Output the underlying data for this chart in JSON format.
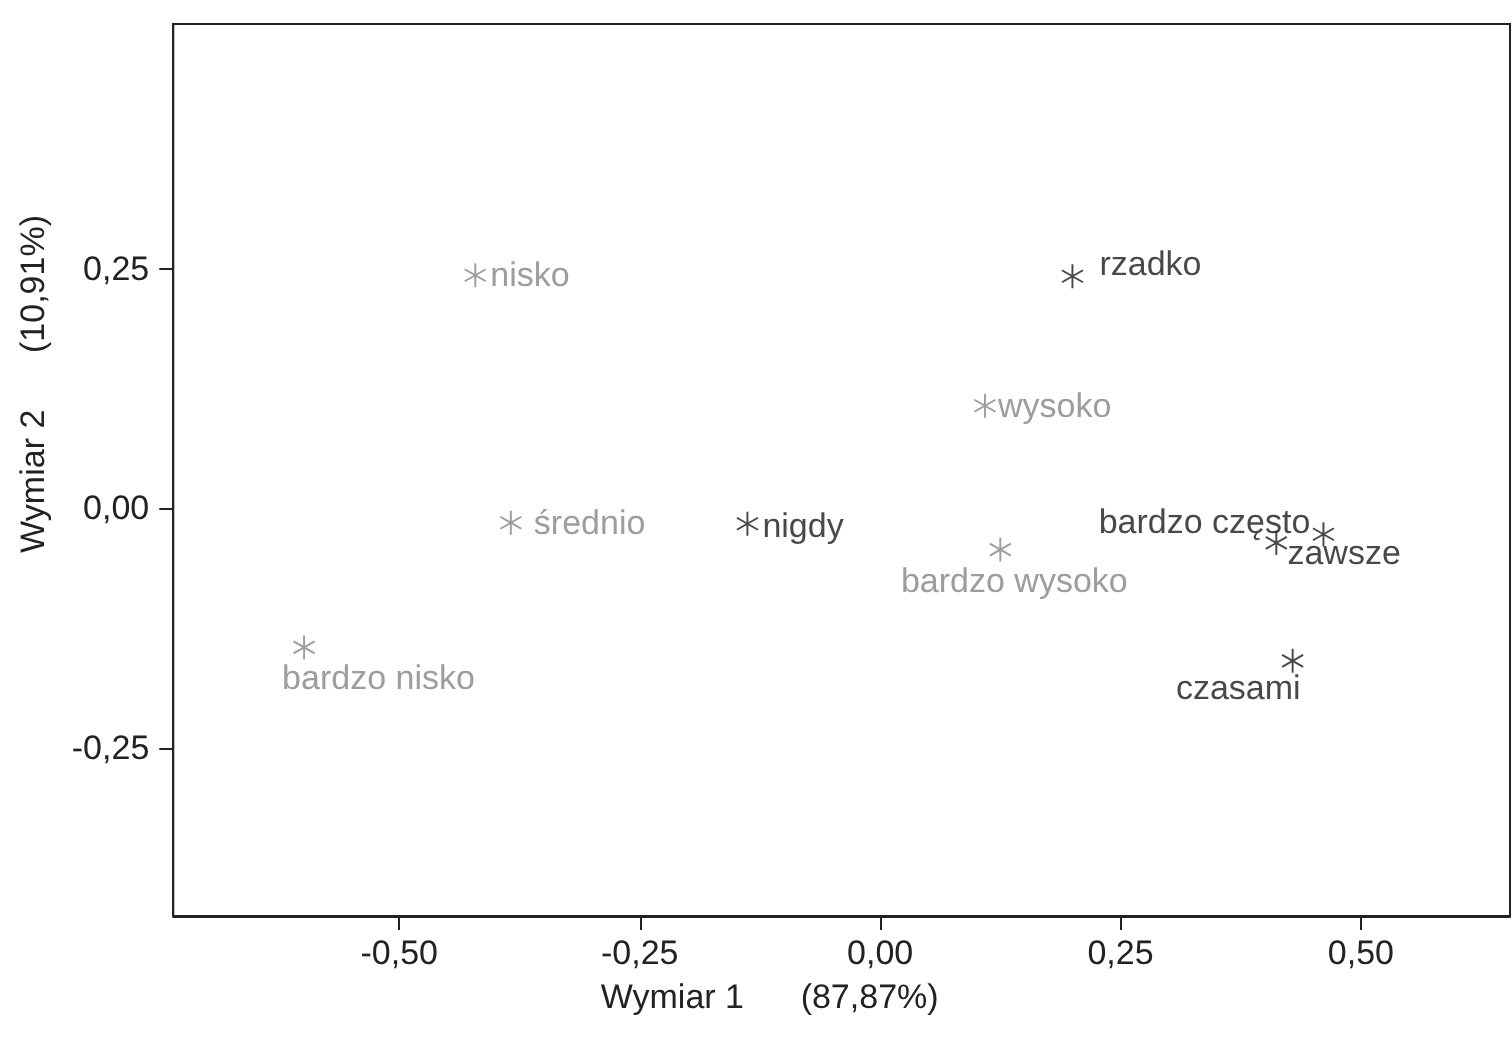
{
  "chart_data": {
    "type": "scatter",
    "xlabel": "Wymiar 1      (87,87%)",
    "ylabel": "Wymiar 2      (10,91%)",
    "series": [
      {
        "color": "#858585",
        "x": [
          -0.421,
          -0.384,
          -0.599,
          0.109,
          0.125
        ],
        "values": [
          0.243,
          -0.015,
          -0.145,
          0.107,
          -0.043
        ]
      },
      {
        "color": "#1a1a1a",
        "x": [
          -0.138,
          0.2,
          0.412,
          0.461,
          0.429
        ],
        "values": [
          -0.016,
          0.242,
          -0.036,
          -0.027,
          -0.159
        ]
      }
    ],
    "annotations": [
      {
        "text": "nisko",
        "x": -0.421,
        "y": 0.243
      },
      {
        "text": "średnio",
        "x": -0.384,
        "y": -0.015
      },
      {
        "text": "bardzo nisko",
        "x": -0.599,
        "y": -0.145
      },
      {
        "text": "wysoko",
        "x": 0.109,
        "y": 0.107
      },
      {
        "text": "bardzo wysoko",
        "x": 0.125,
        "y": -0.043
      },
      {
        "text": "nigdy",
        "x": -0.138,
        "y": -0.016
      },
      {
        "text": "rzadko",
        "x": 0.2,
        "y": 0.242
      },
      {
        "text": "bardzo często",
        "x": 0.412,
        "y": -0.036
      },
      {
        "text": "zawsze",
        "x": 0.461,
        "y": -0.027
      },
      {
        "text": "czasami",
        "x": 0.429,
        "y": -0.159
      }
    ],
    "xlim": [
      -0.735,
      0.655
    ],
    "ylim": [
      -0.425,
      0.505
    ],
    "xticks": [
      {
        "value": -0.5,
        "label": "-0,50"
      },
      {
        "value": -0.25,
        "label": "-0,25"
      },
      {
        "value": 0,
        "label": "0,00"
      },
      {
        "value": 0.25,
        "label": "0,25"
      },
      {
        "value": 0.5,
        "label": "0,50"
      }
    ],
    "yticks": [
      {
        "value": -0.25,
        "label": "-0,25"
      },
      {
        "value": 0,
        "label": "0,00"
      },
      {
        "value": 0.25,
        "label": "0,25"
      }
    ],
    "marker": "cross"
  }
}
